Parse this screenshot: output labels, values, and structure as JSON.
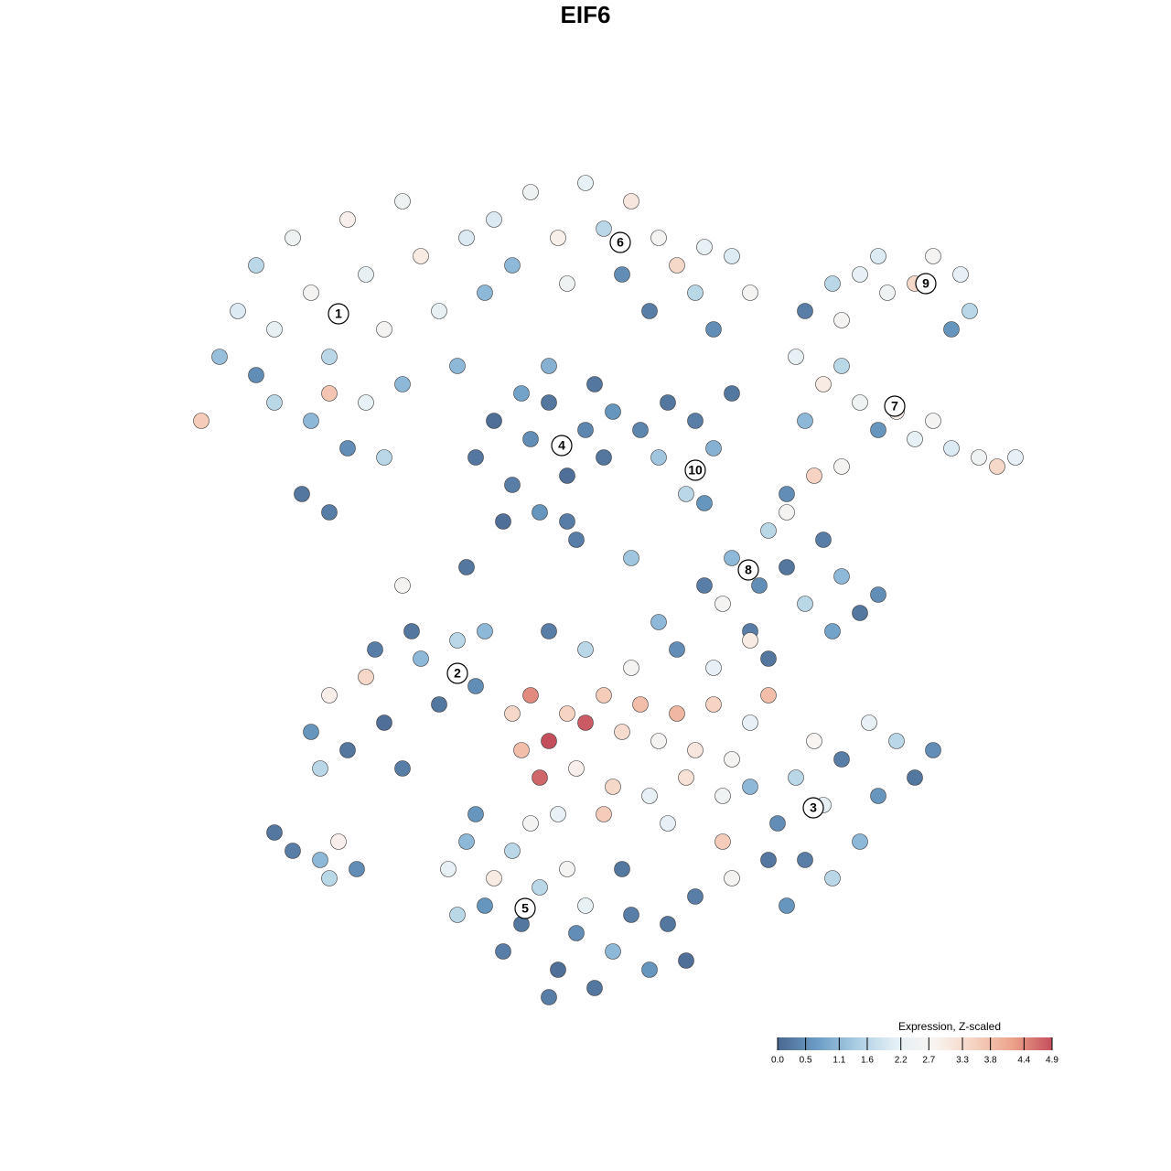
{
  "chart_data": {
    "type": "scatter",
    "title": "EIF6",
    "xlim": [
      0,
      100
    ],
    "ylim": [
      0,
      100
    ],
    "x": [
      8,
      10,
      12,
      14,
      16,
      18,
      20,
      22,
      24,
      26,
      28,
      30,
      32,
      34,
      14,
      18,
      22,
      17,
      20,
      24,
      28,
      6,
      12,
      26,
      35,
      20,
      38,
      42,
      45,
      48,
      50,
      53,
      56,
      58,
      61,
      64,
      40,
      46,
      52,
      60,
      66,
      37,
      55,
      62,
      36,
      38,
      40,
      42,
      44,
      46,
      48,
      50,
      43,
      39,
      46,
      41,
      49,
      44,
      51,
      54,
      57,
      60,
      62,
      59,
      61,
      64,
      56,
      72,
      75,
      78,
      81,
      84,
      86,
      89,
      90,
      88,
      80,
      76,
      71,
      74,
      76,
      78,
      80,
      82,
      84,
      86,
      88,
      91,
      93,
      95,
      70,
      73,
      76,
      72,
      61,
      64,
      67,
      70,
      72,
      74,
      76,
      78,
      80,
      75,
      68,
      63,
      66,
      70,
      18,
      20,
      22,
      24,
      26,
      28,
      30,
      32,
      34,
      36,
      25,
      29,
      37,
      19,
      14,
      16,
      19,
      21,
      23,
      20,
      40,
      42,
      44,
      46,
      48,
      50,
      52,
      54,
      56,
      58,
      60,
      62,
      64,
      66,
      68,
      43,
      47,
      51,
      55,
      59,
      63,
      45,
      50,
      57,
      41,
      53,
      48,
      58,
      62,
      68,
      44,
      56,
      66,
      66,
      69,
      71,
      74,
      76,
      78,
      80,
      82,
      84,
      86,
      72,
      75,
      68,
      64,
      79,
      70,
      63,
      73,
      33,
      35,
      37,
      39,
      41,
      43,
      45,
      47,
      49,
      51,
      53,
      55,
      57,
      59,
      46,
      40,
      52,
      44,
      38,
      34,
      60,
      48,
      42,
      36,
      28,
      35,
      47,
      53
    ],
    "y": [
      75,
      80,
      85,
      78,
      88,
      82,
      75,
      90,
      84,
      78,
      92,
      86,
      80,
      74,
      70,
      68,
      65,
      60,
      58,
      70,
      72,
      68,
      73,
      64,
      88,
      71,
      90,
      93,
      88,
      94,
      89,
      92,
      88,
      85,
      87,
      86,
      85,
      83,
      84,
      82,
      82,
      82,
      80,
      78,
      64,
      68,
      61,
      66,
      70,
      62,
      67,
      64,
      58,
      57,
      57,
      71,
      72,
      74,
      69,
      67,
      70,
      68,
      65,
      60,
      59,
      71,
      64,
      80,
      83,
      84,
      82,
      83,
      86,
      84,
      80,
      78,
      86,
      79,
      75,
      72,
      74,
      70,
      67,
      69,
      66,
      68,
      65,
      64,
      63,
      64,
      60,
      62,
      63,
      68,
      50,
      53,
      50,
      52,
      48,
      55,
      51,
      47,
      49,
      45,
      56,
      48,
      45,
      58,
      34,
      38,
      32,
      40,
      35,
      30,
      42,
      37,
      44,
      39,
      43,
      45,
      45,
      30,
      23,
      21,
      20,
      22,
      19,
      18,
      36,
      38,
      33,
      36,
      35,
      38,
      34,
      37,
      33,
      36,
      32,
      37,
      31,
      35,
      38,
      29,
      30,
      28,
      27,
      29,
      27,
      25,
      25,
      24,
      32,
      41,
      43,
      43,
      41,
      42,
      45,
      46,
      44,
      28,
      24,
      29,
      26,
      31,
      22,
      27,
      33,
      29,
      32,
      20,
      18,
      20,
      18,
      35,
      15,
      22,
      33,
      19,
      22,
      15,
      10,
      13,
      17,
      8,
      12,
      6,
      10,
      14,
      8,
      13,
      9,
      19,
      21,
      19,
      5,
      18,
      14,
      16,
      15,
      24,
      25,
      50,
      52,
      55,
      53
    ],
    "values": [
      1.2,
      2.0,
      1.6,
      2.2,
      2.5,
      2.7,
      1.6,
      2.9,
      2.2,
      2.7,
      2.5,
      3.0,
      2.2,
      1.1,
      1.6,
      1.1,
      0.5,
      0.2,
      0.3,
      2.2,
      1.1,
      3.6,
      0.5,
      1.6,
      2.0,
      3.7,
      2.0,
      2.5,
      2.9,
      2.2,
      1.6,
      3.1,
      2.7,
      3.4,
      2.2,
      2.0,
      1.1,
      2.5,
      0.5,
      1.6,
      2.7,
      1.1,
      0.3,
      0.5,
      0.2,
      0.1,
      0.3,
      0.5,
      0.2,
      0.1,
      0.4,
      0.2,
      0.6,
      0.1,
      0.3,
      0.8,
      0.2,
      1.0,
      0.6,
      0.4,
      0.2,
      0.3,
      1.0,
      1.6,
      0.6,
      0.2,
      1.3,
      0.3,
      1.6,
      2.2,
      2.5,
      3.4,
      2.7,
      2.2,
      1.6,
      0.6,
      2.0,
      2.7,
      2.2,
      3.0,
      1.6,
      2.5,
      0.6,
      2.9,
      2.2,
      2.7,
      2.0,
      2.5,
      3.4,
      2.2,
      0.5,
      3.5,
      2.7,
      1.1,
      0.3,
      1.1,
      0.5,
      0.2,
      1.6,
      0.3,
      1.1,
      0.2,
      0.5,
      0.8,
      1.6,
      2.7,
      0.3,
      2.7,
      0.6,
      2.9,
      0.2,
      3.4,
      0.1,
      0.3,
      1.1,
      0.2,
      1.6,
      0.5,
      0.3,
      0.2,
      1.1,
      1.6,
      0.2,
      0.3,
      1.1,
      2.9,
      0.5,
      1.6,
      3.4,
      4.4,
      4.9,
      3.5,
      4.8,
      3.6,
      3.3,
      3.8,
      2.7,
      3.9,
      3.1,
      3.5,
      2.7,
      2.2,
      3.8,
      4.7,
      2.9,
      3.4,
      2.2,
      3.2,
      2.5,
      2.2,
      3.6,
      2.2,
      3.8,
      2.7,
      1.6,
      0.5,
      2.2,
      0.2,
      0.3,
      1.1,
      3.0,
      1.1,
      0.5,
      1.6,
      2.2,
      0.3,
      1.1,
      0.6,
      1.6,
      0.2,
      0.5,
      0.3,
      1.6,
      0.2,
      2.7,
      2.2,
      0.6,
      3.6,
      2.8,
      2.2,
      1.1,
      0.6,
      0.3,
      0.2,
      1.6,
      0.1,
      0.5,
      0.2,
      1.1,
      0.3,
      0.6,
      0.2,
      0.1,
      2.7,
      1.6,
      0.2,
      0.3,
      3.0,
      1.6,
      0.3,
      2.2,
      2.7,
      0.6,
      2.7,
      0.2,
      0.3,
      1.3
    ],
    "annotations": [
      {
        "text": "1",
        "x": 21,
        "y": 79.7
      },
      {
        "text": "2",
        "x": 34,
        "y": 40.4
      },
      {
        "text": "3",
        "x": 72.9,
        "y": 25.7
      },
      {
        "text": "4",
        "x": 45.4,
        "y": 65.3
      },
      {
        "text": "5",
        "x": 41.4,
        "y": 14.7
      },
      {
        "text": "6",
        "x": 51.8,
        "y": 87.5
      },
      {
        "text": "7",
        "x": 81.8,
        "y": 69.6
      },
      {
        "text": "8",
        "x": 65.8,
        "y": 51.7
      },
      {
        "text": "9",
        "x": 85.2,
        "y": 83
      },
      {
        "text": "10",
        "x": 60,
        "y": 62.6
      }
    ],
    "colorbar_title": "Expression, Z-scaled",
    "clim": [
      0,
      4.9
    ],
    "cticks": [
      {
        "value": 0,
        "label": "0.0"
      },
      0.5,
      1.1,
      1.6,
      2.2,
      2.7,
      3.3,
      3.8,
      4.4,
      4.9
    ],
    "colorscale": [
      "#4a6890",
      "#6b9cc6",
      "#a9cde3",
      "#e3eff6",
      "#f8f4f1",
      "#f6d3c2",
      "#eca28a",
      "#c44e5c"
    ]
  }
}
